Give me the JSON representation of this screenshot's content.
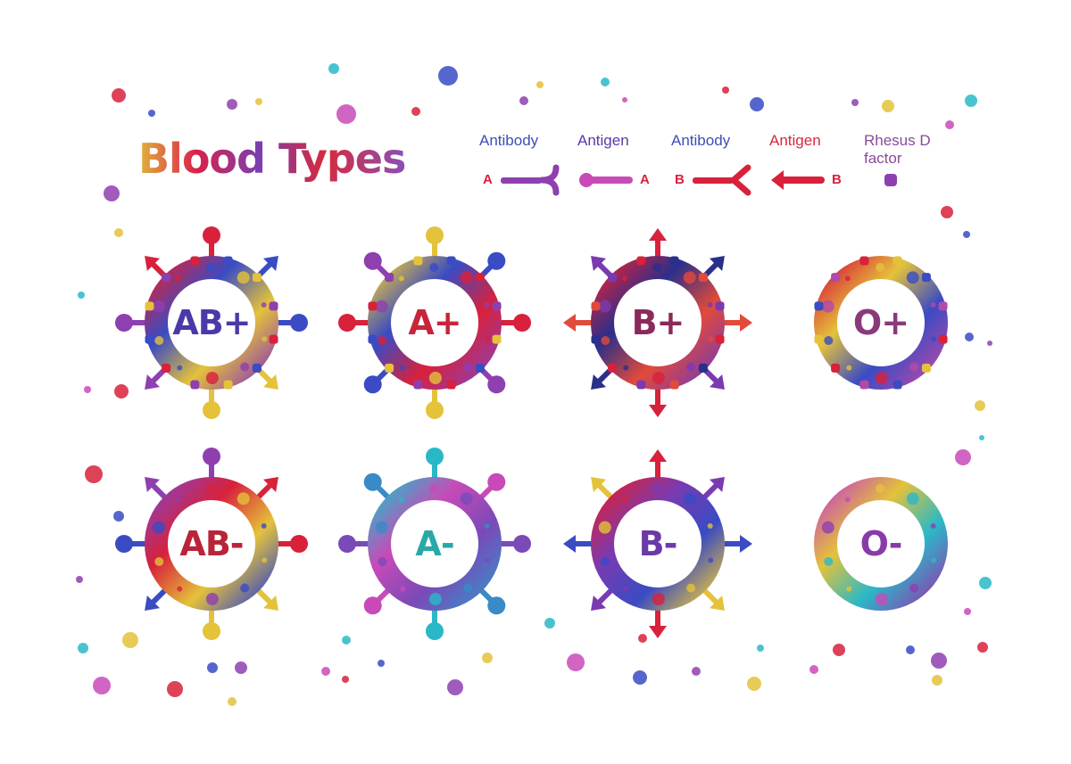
{
  "title": "Blood Types",
  "legend": [
    {
      "label": "Antibody",
      "letter": "A",
      "symbol": "antibody",
      "color": "#3f4db8"
    },
    {
      "label": "Antigen",
      "letter": "A",
      "symbol": "antigen",
      "color": "#5a3aa8"
    },
    {
      "label": "Antibody",
      "letter": "B",
      "symbol": "antibody",
      "color": "#3f4db8"
    },
    {
      "label": "Antigen",
      "letter": "B",
      "symbol": "antigen",
      "color": "#d9263f"
    },
    {
      "label": "Rhesus D factor",
      "letter": "",
      "symbol": "rhesus",
      "color": "#8a4a9a"
    }
  ],
  "blood_types": [
    {
      "label": "AB+",
      "antigens": [
        "A",
        "B"
      ],
      "rhesus": true,
      "label_color": "#4a3aa8",
      "ring_colors": [
        "#d8213b",
        "#3a4bc4",
        "#e4c23a",
        "#8e3fb0"
      ]
    },
    {
      "label": "A+",
      "antigens": [
        "A"
      ],
      "rhesus": true,
      "label_color": "#c8243a",
      "ring_colors": [
        "#e4c23a",
        "#3a4bc4",
        "#d8213b",
        "#8e3fb0"
      ]
    },
    {
      "label": "B+",
      "antigens": [
        "B"
      ],
      "rhesus": true,
      "label_color": "#8a2a5a",
      "ring_colors": [
        "#d8213b",
        "#2a2f8a",
        "#e24a3a",
        "#7a3ab0"
      ]
    },
    {
      "label": "O+",
      "antigens": [],
      "rhesus": true,
      "label_color": "#8a3a7a",
      "ring_colors": [
        "#d8213b",
        "#e4c23a",
        "#3a4bc4",
        "#b24aa8"
      ]
    },
    {
      "label": "AB-",
      "antigens": [
        "A",
        "B"
      ],
      "rhesus": false,
      "label_color": "#b8243a",
      "ring_colors": [
        "#8e3fb0",
        "#d8213b",
        "#e4c23a",
        "#3a4bc4"
      ]
    },
    {
      "label": "A-",
      "antigens": [
        "A"
      ],
      "rhesus": false,
      "label_color": "#2aa8a8",
      "ring_colors": [
        "#2ab8c8",
        "#c84ab8",
        "#7a4ab8",
        "#3a8ac8"
      ]
    },
    {
      "label": "B-",
      "antigens": [
        "B"
      ],
      "rhesus": false,
      "label_color": "#6a3aa8",
      "ring_colors": [
        "#d8213b",
        "#7a3ab0",
        "#3a4bc4",
        "#e4c23a"
      ]
    },
    {
      "label": "O-",
      "antigens": [],
      "rhesus": false,
      "label_color": "#8a3aa8",
      "ring_colors": [
        "#c84ab8",
        "#e4c23a",
        "#2ab8c8",
        "#8e3fb0"
      ]
    }
  ],
  "colors": {
    "red": "#d8213b",
    "blue": "#3a4bc4",
    "purple": "#8e3fb0",
    "yellow": "#e4c23a",
    "cyan": "#2ab8c8",
    "magenta": "#c84ab8",
    "background": "#ffffff"
  }
}
